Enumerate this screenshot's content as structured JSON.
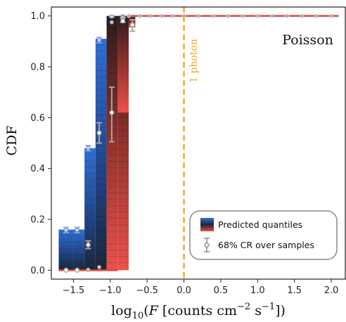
{
  "chart_data": {
    "type": "bar",
    "panel_label": "Poisson",
    "xlabel": "log₁₀(F [counts cm⁻² s⁻¹])",
    "xlabel_parts": {
      "base": "log",
      "sub": "10",
      "open": "(",
      "var": "F",
      "rest1": " [counts cm",
      "exp1": "−2",
      "rest2": " s",
      "exp2": "−1",
      "close": "])"
    },
    "ylabel": "CDF",
    "xlim": [
      -1.8,
      2.2
    ],
    "ylim": [
      -0.035,
      1.035
    ],
    "x_ticks": [
      -1.5,
      -1.0,
      -0.5,
      0.0,
      0.5,
      1.0,
      1.5,
      2.0
    ],
    "x_tick_labels": [
      "−1.5",
      "−1.0",
      "−0.5",
      "0.0",
      "0.5",
      "1.0",
      "1.5",
      "2.0"
    ],
    "y_ticks": [
      0.0,
      0.2,
      0.4,
      0.6,
      0.8,
      1.0
    ],
    "y_tick_labels": [
      "0.0",
      "0.2",
      "0.4",
      "0.6",
      "0.8",
      "1.0"
    ],
    "grid": false,
    "bin_edges": [
      -1.7,
      -1.5,
      -1.35,
      -1.2,
      -1.05,
      -0.9,
      -0.75,
      2.1
    ],
    "bin_centers": [
      -1.6,
      -1.45,
      -1.3,
      -1.15,
      -0.98,
      -0.83,
      -0.7
    ],
    "quantiles_blue": [
      0.16,
      0.16,
      0.48,
      0.91,
      1.0,
      1.0,
      1.0
    ],
    "quantiles_red": [
      0.0,
      0.0,
      0.0,
      0.0,
      0.0,
      0.0,
      1.0
    ],
    "samples_median": [
      0.0,
      0.0,
      0.1,
      0.54,
      0.62,
      0.98,
      0.965
    ],
    "samples_low": [
      0.0,
      0.0,
      0.085,
      0.5,
      0.505,
      0.975,
      0.94
    ],
    "samples_high": [
      0.0,
      0.0,
      0.115,
      0.58,
      0.72,
      0.99,
      0.985
    ],
    "blue_markers": [
      {
        "x": -1.6,
        "lo": 0.148,
        "hi": 0.168
      },
      {
        "x": -1.45,
        "lo": 0.148,
        "hi": 0.168
      },
      {
        "x": -1.3,
        "lo": 0.47,
        "hi": 0.49
      },
      {
        "x": -1.15,
        "lo": 0.895,
        "hi": 0.915
      },
      {
        "x": -0.98,
        "lo": 0.995,
        "hi": 1.0
      },
      {
        "x": -0.83,
        "lo": 0.995,
        "hi": 1.0
      }
    ],
    "red_markers": [
      {
        "x": -1.6,
        "v": 0.002
      },
      {
        "x": -1.45,
        "v": 0.002
      },
      {
        "x": -1.3,
        "v": 0.002
      },
      {
        "x": -1.15,
        "v": 0.012
      },
      {
        "x": -0.98,
        "v": 0.975
      },
      {
        "x": -0.83,
        "v": 0.995
      }
    ],
    "red_line_points": [
      0.0,
      0.2,
      0.4,
      0.6,
      0.8,
      1.0,
      1.2,
      1.4,
      1.6,
      1.8,
      2.0
    ],
    "red_line_points_start": [
      -0.75,
      -0.6,
      -0.45,
      -0.3,
      -0.15
    ],
    "vline": {
      "x": 0.0,
      "label": "1 photon",
      "color": "#f2a825"
    },
    "legend": {
      "position": "lower-right",
      "entries": [
        "Predicted quantiles",
        "68% CR over samples"
      ]
    },
    "colors": {
      "blue_dark": "#1d2636",
      "blue_light": "#2f6fd6",
      "red_dark": "#2a1d1d",
      "red_light": "#e9524a",
      "red_line": "#e0453d",
      "sample_marker": "#a6a6a6"
    }
  }
}
